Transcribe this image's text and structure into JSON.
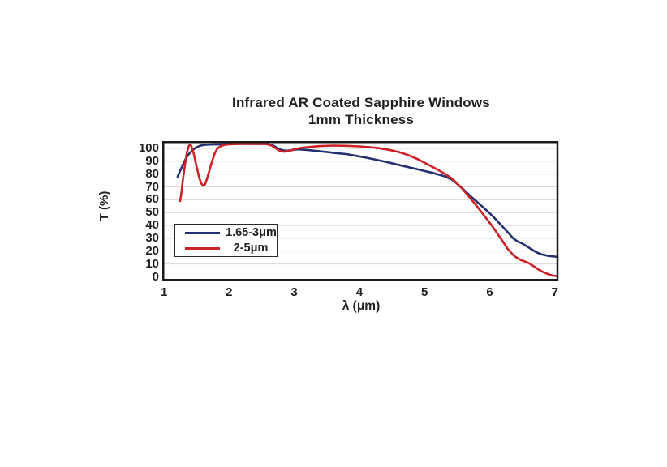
{
  "page": {
    "background": "#ffffff"
  },
  "chart_data": {
    "type": "line",
    "title": "Infrared AR Coated Sapphire Windows",
    "subtitle": "1mm Thickness",
    "xlabel": "λ (μm)",
    "ylabel": "T (%)",
    "xlim": [
      1,
      7.05
    ],
    "ylim": [
      0,
      100
    ],
    "x_ticks": [
      1,
      2,
      3,
      4,
      5,
      6,
      7
    ],
    "y_ticks": [
      0,
      10,
      20,
      30,
      40,
      50,
      60,
      70,
      80,
      90,
      100
    ],
    "grid": "horizontal-only",
    "legend_position": "inside-left",
    "colors": {
      "frame": "#1a1a1a",
      "grid": "#d9d9d9",
      "text": "#231f20",
      "background": "#ffffff"
    },
    "series": [
      {
        "name": "1.65-3μm",
        "color": "#243170",
        "points": [
          [
            1.21,
            78
          ],
          [
            1.24,
            81.5
          ],
          [
            1.28,
            86
          ],
          [
            1.32,
            90.5
          ],
          [
            1.36,
            94
          ],
          [
            1.4,
            96.5
          ],
          [
            1.44,
            98.6
          ],
          [
            1.48,
            100.3
          ],
          [
            1.53,
            101.6
          ],
          [
            1.58,
            102.4
          ],
          [
            1.65,
            102.9
          ],
          [
            1.75,
            103.1
          ],
          [
            1.9,
            103.2
          ],
          [
            2.05,
            103.4
          ],
          [
            2.2,
            103.5
          ],
          [
            2.35,
            103.5
          ],
          [
            2.5,
            103.5
          ],
          [
            2.6,
            103.3
          ],
          [
            2.68,
            102.2
          ],
          [
            2.74,
            100.3
          ],
          [
            2.8,
            98.8
          ],
          [
            2.87,
            98.2
          ],
          [
            2.95,
            98.5
          ],
          [
            3.02,
            99.2
          ],
          [
            3.1,
            99.2
          ],
          [
            3.2,
            98.8
          ],
          [
            3.35,
            98
          ],
          [
            3.5,
            97.2
          ],
          [
            3.65,
            96.3
          ],
          [
            3.8,
            95.6
          ],
          [
            3.95,
            94.2
          ],
          [
            4.1,
            92.8
          ],
          [
            4.25,
            91.2
          ],
          [
            4.4,
            89.6
          ],
          [
            4.55,
            87.8
          ],
          [
            4.7,
            86
          ],
          [
            4.85,
            84.2
          ],
          [
            5.0,
            82.4
          ],
          [
            5.15,
            80.6
          ],
          [
            5.3,
            78.4
          ],
          [
            5.42,
            75.8
          ],
          [
            5.5,
            72.5
          ],
          [
            5.58,
            68.8
          ],
          [
            5.68,
            64
          ],
          [
            5.78,
            59.5
          ],
          [
            5.88,
            55
          ],
          [
            5.98,
            50.5
          ],
          [
            6.08,
            45.5
          ],
          [
            6.18,
            40
          ],
          [
            6.28,
            34.5
          ],
          [
            6.36,
            30
          ],
          [
            6.43,
            27.5
          ],
          [
            6.5,
            26
          ],
          [
            6.56,
            24
          ],
          [
            6.64,
            21.5
          ],
          [
            6.72,
            19
          ],
          [
            6.8,
            17.5
          ],
          [
            6.9,
            16.3
          ],
          [
            7.0,
            15.8
          ],
          [
            7.04,
            15.5
          ]
        ]
      },
      {
        "name": "2-5μm",
        "color": "#cc2127",
        "points": [
          [
            1.25,
            59
          ],
          [
            1.27,
            66
          ],
          [
            1.29,
            75
          ],
          [
            1.32,
            86
          ],
          [
            1.35,
            96
          ],
          [
            1.38,
            101.5
          ],
          [
            1.4,
            103
          ],
          [
            1.42,
            102
          ],
          [
            1.45,
            97.5
          ],
          [
            1.48,
            91
          ],
          [
            1.51,
            84
          ],
          [
            1.54,
            77.5
          ],
          [
            1.57,
            73
          ],
          [
            1.6,
            71
          ],
          [
            1.63,
            72
          ],
          [
            1.66,
            76
          ],
          [
            1.7,
            83
          ],
          [
            1.74,
            90
          ],
          [
            1.78,
            96
          ],
          [
            1.82,
            99.8
          ],
          [
            1.87,
            101.8
          ],
          [
            1.93,
            102.7
          ],
          [
            2.0,
            103.2
          ],
          [
            2.15,
            103.5
          ],
          [
            2.3,
            103.5
          ],
          [
            2.45,
            103.6
          ],
          [
            2.58,
            103.4
          ],
          [
            2.66,
            102
          ],
          [
            2.72,
            100
          ],
          [
            2.78,
            98
          ],
          [
            2.85,
            97.4
          ],
          [
            2.92,
            98
          ],
          [
            3.0,
            99.3
          ],
          [
            3.1,
            100.4
          ],
          [
            3.25,
            101.2
          ],
          [
            3.4,
            101.8
          ],
          [
            3.6,
            102.2
          ],
          [
            3.8,
            102
          ],
          [
            4.0,
            101.6
          ],
          [
            4.15,
            101
          ],
          [
            4.3,
            100.2
          ],
          [
            4.45,
            98.9
          ],
          [
            4.6,
            97.2
          ],
          [
            4.75,
            94.8
          ],
          [
            4.9,
            91.5
          ],
          [
            5.05,
            87.5
          ],
          [
            5.2,
            83.5
          ],
          [
            5.32,
            80
          ],
          [
            5.42,
            76.5
          ],
          [
            5.5,
            72.8
          ],
          [
            5.58,
            68.5
          ],
          [
            5.68,
            62.5
          ],
          [
            5.78,
            56.5
          ],
          [
            5.88,
            50
          ],
          [
            5.98,
            43.5
          ],
          [
            6.08,
            36.5
          ],
          [
            6.18,
            29
          ],
          [
            6.28,
            21.5
          ],
          [
            6.38,
            16
          ],
          [
            6.48,
            13
          ],
          [
            6.58,
            11.2
          ],
          [
            6.66,
            8.8
          ],
          [
            6.74,
            6
          ],
          [
            6.82,
            3.8
          ],
          [
            6.9,
            2
          ],
          [
            6.98,
            0.9
          ],
          [
            7.04,
            0.4
          ]
        ]
      }
    ]
  }
}
